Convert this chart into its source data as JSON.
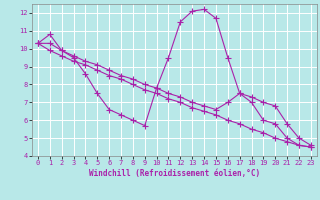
{
  "background_color": "#b8e8e8",
  "line_color": "#aa22aa",
  "grid_color": "#ffffff",
  "xlabel": "Windchill (Refroidissement éolien,°C)",
  "xlim": [
    -0.5,
    23.5
  ],
  "ylim": [
    4,
    12.5
  ],
  "yticks": [
    4,
    5,
    6,
    7,
    8,
    9,
    10,
    11,
    12
  ],
  "xticks": [
    0,
    1,
    2,
    3,
    4,
    5,
    6,
    7,
    8,
    9,
    10,
    11,
    12,
    13,
    14,
    15,
    16,
    17,
    18,
    19,
    20,
    21,
    22,
    23
  ],
  "xticklabels": [
    "0",
    "1",
    "2",
    "3",
    "4",
    "5",
    "6",
    "7",
    "8",
    "9",
    "10",
    "11",
    "12",
    "13",
    "14",
    "15",
    "16",
    "17",
    "18",
    "19",
    "20",
    "21",
    "22",
    "23"
  ],
  "series": [
    {
      "x": [
        0,
        1,
        2,
        3,
        4,
        5,
        6,
        7,
        8,
        9,
        10,
        11,
        12,
        13,
        14,
        15,
        16,
        17,
        18,
        19,
        20,
        21,
        22,
        23
      ],
      "y": [
        10.3,
        10.8,
        9.9,
        9.5,
        8.6,
        7.5,
        6.6,
        6.3,
        6.0,
        5.7,
        7.8,
        9.5,
        11.5,
        12.1,
        12.2,
        11.7,
        9.5,
        7.5,
        7.0,
        6.0,
        5.8,
        5.0,
        4.6,
        4.5
      ]
    },
    {
      "x": [
        0,
        1,
        2,
        3,
        4,
        5,
        6,
        7,
        8,
        9,
        10,
        11,
        12,
        13,
        14,
        15,
        16,
        17,
        18,
        19,
        20,
        21,
        22,
        23
      ],
      "y": [
        10.3,
        10.3,
        9.9,
        9.6,
        9.3,
        9.1,
        8.8,
        8.5,
        8.3,
        8.0,
        7.8,
        7.5,
        7.3,
        7.0,
        6.8,
        6.6,
        7.0,
        7.5,
        7.3,
        7.0,
        6.8,
        5.8,
        5.0,
        4.6
      ]
    },
    {
      "x": [
        0,
        1,
        2,
        3,
        4,
        5,
        6,
        7,
        8,
        9,
        10,
        11,
        12,
        13,
        14,
        15,
        16,
        17,
        18,
        19,
        20,
        21,
        22,
        23
      ],
      "y": [
        10.3,
        9.9,
        9.6,
        9.3,
        9.1,
        8.8,
        8.5,
        8.3,
        8.0,
        7.7,
        7.5,
        7.2,
        7.0,
        6.7,
        6.5,
        6.3,
        6.0,
        5.8,
        5.5,
        5.3,
        5.0,
        4.8,
        4.6,
        4.5
      ]
    }
  ],
  "marker": "+",
  "markersize": 4,
  "linewidth": 0.8,
  "label_fontsize": 5.5,
  "tick_fontsize": 5.0
}
